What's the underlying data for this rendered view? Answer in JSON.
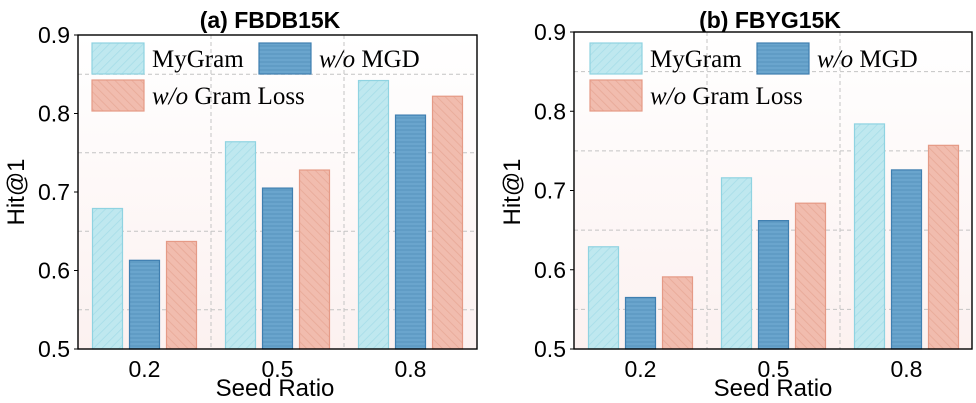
{
  "chart_data": [
    {
      "type": "bar",
      "title": "(a) FBDB15K",
      "xlabel": "Seed Ratio",
      "ylabel": "Hit@1",
      "ylim": [
        0.5,
        0.9
      ],
      "yticks": [
        "0.5",
        "0.6",
        "0.7",
        "0.8",
        "0.9"
      ],
      "categories": [
        "0.2",
        "0.5",
        "0.8"
      ],
      "legend_position": "top-left",
      "series": [
        {
          "name": "MyGram",
          "name_italic": "",
          "name_rest": "MyGram",
          "values": [
            0.679,
            0.764,
            0.842
          ]
        },
        {
          "name": "w/o MGD",
          "name_italic": "w/o",
          "name_rest": " MGD",
          "values": [
            0.613,
            0.705,
            0.798
          ]
        },
        {
          "name": "w/o Gram Loss",
          "name_italic": "w/o",
          "name_rest": " Gram Loss",
          "values": [
            0.637,
            0.728,
            0.822
          ]
        }
      ]
    },
    {
      "type": "bar",
      "title": "(b) FBYG15K",
      "xlabel": "Seed Ratio",
      "ylabel": "Hit@1",
      "ylim": [
        0.5,
        0.9
      ],
      "yticks": [
        "0.5",
        "0.6",
        "0.7",
        "0.8",
        "0.9"
      ],
      "categories": [
        "0.2",
        "0.5",
        "0.8"
      ],
      "legend_position": "top-left",
      "series": [
        {
          "name": "MyGram",
          "name_italic": "",
          "name_rest": "MyGram",
          "values": [
            0.629,
            0.716,
            0.784
          ]
        },
        {
          "name": "w/o MGD",
          "name_italic": "w/o",
          "name_rest": " MGD",
          "values": [
            0.565,
            0.662,
            0.726
          ]
        },
        {
          "name": "w/o Gram Loss",
          "name_italic": "w/o",
          "name_rest": " Gram Loss",
          "values": [
            0.591,
            0.684,
            0.757
          ]
        }
      ]
    }
  ],
  "colors": {
    "series": [
      "#bfe8ef",
      "#6aa5cd",
      "#f1bcae"
    ],
    "series_stroke": [
      "#8fd3e1",
      "#3f7fb0",
      "#e59a86"
    ],
    "series_hatch": [
      "#a6dde8",
      "#5a95c0",
      "#e8a997"
    ]
  }
}
